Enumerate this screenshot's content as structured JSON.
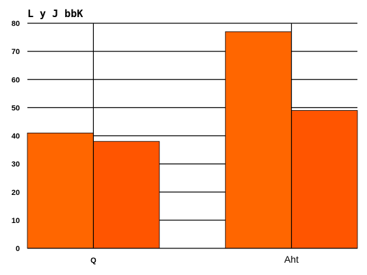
{
  "chart_data": {
    "type": "bar",
    "title": "L y J bbK",
    "xlabel": "",
    "ylabel": "",
    "categories": [
      "Q",
      "Aht"
    ],
    "series": [
      {
        "values": [
          41,
          77
        ],
        "color": "#ff6600"
      },
      {
        "values": [
          38,
          49
        ],
        "color": "#ff5500"
      }
    ],
    "ylim": [
      0,
      80
    ],
    "yticks": [
      0,
      10,
      20,
      30,
      40,
      50,
      60,
      70,
      80
    ],
    "grid": true,
    "legend": "none"
  }
}
